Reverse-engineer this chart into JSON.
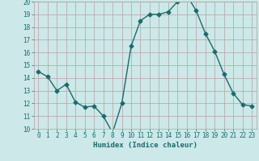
{
  "x": [
    0,
    1,
    2,
    3,
    4,
    5,
    6,
    7,
    8,
    9,
    10,
    11,
    12,
    13,
    14,
    15,
    16,
    17,
    18,
    19,
    20,
    21,
    22,
    23
  ],
  "y": [
    14.5,
    14.1,
    13.0,
    13.5,
    12.1,
    11.7,
    11.8,
    11.0,
    9.7,
    12.0,
    16.5,
    18.5,
    19.0,
    19.0,
    19.2,
    20.0,
    20.5,
    19.3,
    17.5,
    16.1,
    14.3,
    12.8,
    11.9,
    11.8
  ],
  "line_color": "#1a6b6b",
  "marker": "D",
  "marker_size": 2.5,
  "bg_color": "#cce8e8",
  "grid_color": "#b8a0a0",
  "xlabel": "Humidex (Indice chaleur)",
  "ylim": [
    10,
    20
  ],
  "xlim": [
    -0.5,
    23.5
  ],
  "yticks": [
    10,
    11,
    12,
    13,
    14,
    15,
    16,
    17,
    18,
    19,
    20
  ],
  "xticks": [
    0,
    1,
    2,
    3,
    4,
    5,
    6,
    7,
    8,
    9,
    10,
    11,
    12,
    13,
    14,
    15,
    16,
    17,
    18,
    19,
    20,
    21,
    22,
    23
  ],
  "tick_fontsize": 5.5,
  "xlabel_fontsize": 6.5,
  "line_width": 1.0
}
